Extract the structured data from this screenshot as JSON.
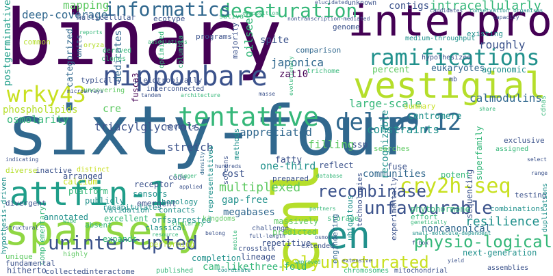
{
  "palette": {
    "dark_purple": "#440154",
    "indigo": "#3b528b",
    "steel_blue": "#31688e",
    "teal": "#21918c",
    "sea_green": "#35b779",
    "lime": "#90d743",
    "yellow_green": "#c8e020",
    "light_green": "#5ec962"
  },
  "words": [
    {
      "text": "binary",
      "color": "#440154"
    },
    {
      "text": "sixty-four",
      "color": "#31688e"
    },
    {
      "text": "cml",
      "color": "#b5de2b"
    },
    {
      "text": "sparsely",
      "color": "#90d743"
    },
    {
      "text": "interpro",
      "color": "#440154"
    },
    {
      "text": "vestigial",
      "color": "#b5de2b"
    },
    {
      "text": "nipponbare",
      "color": "#3b528b"
    },
    {
      "text": "tentative",
      "color": "#35b779"
    },
    {
      "text": "attfin-1",
      "color": "#1f9e89"
    },
    {
      "text": "delta9,12",
      "color": "#31688e"
    },
    {
      "text": "ramifications",
      "color": "#21918c"
    },
    {
      "text": "wrky43",
      "color": "#c8e020"
    },
    {
      "text": "desaturation",
      "color": "#35b779"
    },
    {
      "text": "informatics",
      "color": "#31688e"
    },
    {
      "text": "en",
      "color": "#21918c"
    },
    {
      "text": "cry2h-seq",
      "color": "#c8e020"
    },
    {
      "text": "recombinase",
      "color": "#3b528b"
    },
    {
      "text": "unfavourable",
      "color": "#3b528b"
    },
    {
      "text": "uninterrupted",
      "color": "#3b528b"
    },
    {
      "text": "polyunsaturated",
      "color": "#c8e020"
    },
    {
      "text": "physio-logical",
      "color": "#35b779"
    },
    {
      "text": "intracellularly",
      "color": "#35b779"
    },
    {
      "text": "resilience",
      "color": "#21918c"
    },
    {
      "text": "deep-coverage",
      "color": "#31688e"
    },
    {
      "text": "large-scale",
      "color": "#35b779"
    },
    {
      "text": "calmodulins",
      "color": "#31688e"
    },
    {
      "text": "mapping",
      "color": "#5ec962"
    },
    {
      "text": "contigs",
      "color": "#3b528b"
    },
    {
      "text": "roughly",
      "color": "#3b528b"
    },
    {
      "text": "japonica",
      "color": "#31688e"
    },
    {
      "text": "triacylglycerols",
      "color": "#3b528b"
    },
    {
      "text": "appreciated",
      "color": "#31688e"
    },
    {
      "text": "multiplexed",
      "color": "#5ec962"
    },
    {
      "text": "filling",
      "color": "#5ec962"
    },
    {
      "text": "constraints",
      "color": "#21918c"
    },
    {
      "text": "stretch",
      "color": "#3b528b"
    },
    {
      "text": "osmolarity",
      "color": "#35b779"
    },
    {
      "text": "phospholipids",
      "color": "#b5de2b"
    },
    {
      "text": "communities",
      "color": "#31688e"
    },
    {
      "text": "oilseed",
      "color": "#35b779"
    },
    {
      "text": "dedicates",
      "color": "#31688e"
    },
    {
      "text": "categorized",
      "color": "#31688e"
    },
    {
      "text": "megabases",
      "color": "#31688e"
    },
    {
      "text": "one-third",
      "color": "#21918c"
    },
    {
      "text": "three-fold",
      "color": "#35b779"
    },
    {
      "text": "cam-like",
      "color": "#35b779"
    },
    {
      "text": "zat10",
      "color": "#440154"
    },
    {
      "text": "spite",
      "color": "#3b528b"
    },
    {
      "text": "cost",
      "color": "#3b528b"
    },
    {
      "text": "cre",
      "color": "#5ec962"
    },
    {
      "text": "gap-free",
      "color": "#21918c"
    },
    {
      "text": "fatty",
      "color": "#3b528b"
    },
    {
      "text": "eukaryotes",
      "color": "#31688e"
    },
    {
      "text": "noncanonical",
      "color": "#31688e"
    },
    {
      "text": "postgerminative",
      "color": "#1f9e89"
    },
    {
      "text": "multicellular",
      "color": "#3b528b"
    },
    {
      "text": "ecotype",
      "color": "#3b528b"
    },
    {
      "text": "programs",
      "color": "#3b528b"
    },
    {
      "text": "comparison",
      "color": "#31688e"
    },
    {
      "text": "percent",
      "color": "#5ec962"
    },
    {
      "text": "centromere",
      "color": "#21918c"
    },
    {
      "text": "summary",
      "color": "#c8e020"
    },
    {
      "text": "recognizable",
      "color": "#21918c"
    },
    {
      "text": "sequencing",
      "color": "#3b528b"
    },
    {
      "text": "superfamily",
      "color": "#35b779"
    },
    {
      "text": "potent",
      "color": "#35b779"
    },
    {
      "text": "ssp",
      "color": "#3b528b"
    },
    {
      "text": "calcium",
      "color": "#c8e020"
    },
    {
      "text": "platform",
      "color": "#35b779"
    },
    {
      "text": "receptor",
      "color": "#3b528b"
    },
    {
      "text": "arranged",
      "color": "#3b528b"
    },
    {
      "text": "publicly",
      "color": "#21918c"
    },
    {
      "text": "sensors",
      "color": "#21918c"
    },
    {
      "text": "emergent",
      "color": "#3b528b"
    },
    {
      "text": "annotated",
      "color": "#21918c"
    },
    {
      "text": "excellent",
      "color": "#35b779"
    },
    {
      "text": "orfsarrested",
      "color": "#21918c"
    },
    {
      "text": "expands",
      "color": "#35b779"
    },
    {
      "text": "performing",
      "color": "#b5de2b"
    },
    {
      "text": "completion",
      "color": "#21918c"
    },
    {
      "text": "lineage",
      "color": "#3b528b"
    },
    {
      "text": "repetitive",
      "color": "#3b528b"
    },
    {
      "text": "massively",
      "color": "#5ec962"
    },
    {
      "text": "predicted",
      "color": "#5ec962"
    },
    {
      "text": "hitherto",
      "color": "#3b528b"
    },
    {
      "text": "collected",
      "color": "#3b528b"
    },
    {
      "text": "interactome",
      "color": "#3b528b"
    },
    {
      "text": "next-generation",
      "color": "#21918c"
    },
    {
      "text": "phytohormone",
      "color": "#35b779"
    },
    {
      "text": "combinations",
      "color": "#21918c"
    },
    {
      "text": "testing",
      "color": "#3b528b"
    },
    {
      "text": "agronomic",
      "color": "#21918c"
    },
    {
      "text": "exclusive",
      "color": "#3b528b"
    },
    {
      "text": "fuse",
      "color": "#3b528b"
    },
    {
      "text": "searches",
      "color": "#5ec962"
    },
    {
      "text": "reflect",
      "color": "#3b528b"
    },
    {
      "text": "prepared",
      "color": "#3b528b"
    },
    {
      "text": "methods",
      "color": "#21918c"
    },
    {
      "text": "reveals",
      "color": "#3b528b"
    },
    {
      "text": "code",
      "color": "#3b528b"
    },
    {
      "text": "validation",
      "color": "#21918c"
    },
    {
      "text": "contacts",
      "color": "#21918c"
    },
    {
      "text": "homology",
      "color": "#21918c"
    },
    {
      "text": "classical",
      "color": "#21918c"
    },
    {
      "text": "recapitulates",
      "color": "#21918c"
    },
    {
      "text": "representatives",
      "color": "#21918c"
    },
    {
      "text": "kingdoms",
      "color": "#5ec962"
    },
    {
      "text": "screens",
      "color": "#3b528b"
    },
    {
      "text": "challenge",
      "color": "#3b528b"
    },
    {
      "text": "extended",
      "color": "#3b528b"
    },
    {
      "text": "effort",
      "color": "#35b779"
    },
    {
      "text": "storage",
      "color": "#35b779"
    },
    {
      "text": "technologies",
      "color": "#3b528b"
    },
    {
      "text": "experimentally",
      "color": "#3b528b"
    },
    {
      "text": "ubiquitous",
      "color": "#21918c"
    },
    {
      "text": "engineering",
      "color": "#31688e"
    },
    {
      "text": "hypothesis-driven",
      "color": "#21918c"
    },
    {
      "text": "complementary",
      "color": "#35b779"
    },
    {
      "text": "divergent",
      "color": "#3b528b"
    },
    {
      "text": "absent",
      "color": "#35b779"
    },
    {
      "text": "unique",
      "color": "#5ec962"
    },
    {
      "text": "fundamental",
      "color": "#3b528b"
    },
    {
      "text": "diverse",
      "color": "#b5de2b"
    },
    {
      "text": "inactive",
      "color": "#3b528b"
    },
    {
      "text": "distinct",
      "color": "#c8e020"
    },
    {
      "text": "typically",
      "color": "#3b528b"
    },
    {
      "text": "pleiotropically",
      "color": "#3b528b"
    },
    {
      "text": "interconnected",
      "color": "#3b528b"
    },
    {
      "text": "uncovering",
      "color": "#5ec962"
    },
    {
      "text": "fusca3",
      "color": "#440154"
    },
    {
      "text": "columbia",
      "color": "#35b779"
    },
    {
      "text": "optimized",
      "color": "#35b779"
    },
    {
      "text": "majority",
      "color": "#3b528b"
    },
    {
      "text": "genome",
      "color": "#3b528b"
    },
    {
      "text": "medium-throughput",
      "color": "#21918c"
    },
    {
      "text": "existing",
      "color": "#21918c"
    },
    {
      "text": "hypothesized",
      "color": "#3b528b"
    },
    {
      "text": "mb",
      "color": "#3b528b"
    },
    {
      "text": "units",
      "color": "#31688e"
    },
    {
      "text": "common",
      "color": "#b5de2b"
    },
    {
      "text": "oryza",
      "color": "#b5de2b"
    },
    {
      "text": "derived",
      "color": "#35b779"
    },
    {
      "text": "clones",
      "color": "#35b779"
    },
    {
      "text": "sativa",
      "color": "#35b779"
    },
    {
      "text": "trichome",
      "color": "#35b779"
    },
    {
      "text": "nontranscription-mediated",
      "color": "#3b528b"
    },
    {
      "text": "elucidated",
      "color": "#3b528b"
    },
    {
      "text": "unknown",
      "color": "#3b528b"
    },
    {
      "text": "candidates",
      "color": "#3b528b"
    },
    {
      "text": "conservation",
      "color": "#21918c"
    },
    {
      "text": "organisms",
      "color": "#21918c"
    },
    {
      "text": "capacity",
      "color": "#3b528b"
    },
    {
      "text": "assigned",
      "color": "#35b779"
    },
    {
      "text": "small-molecule-dependent",
      "color": "#21918c"
    },
    {
      "text": "f-box",
      "color": "#3b528b"
    },
    {
      "text": "yield",
      "color": "#3b528b"
    },
    {
      "text": "assemblies",
      "color": "#3b528b"
    },
    {
      "text": "mitochondrial",
      "color": "#3b528b"
    },
    {
      "text": "chromosomes",
      "color": "#35b779"
    },
    {
      "text": "improved",
      "color": "#35b779"
    },
    {
      "text": "crosstalk",
      "color": "#3b528b"
    },
    {
      "text": "full-length",
      "color": "#3b528b"
    },
    {
      "text": "osmotic",
      "color": "#3b528b"
    },
    {
      "text": "density",
      "color": "#31688e"
    },
    {
      "text": "similarity",
      "color": "#35b779"
    },
    {
      "text": "resource",
      "color": "#35b779"
    },
    {
      "text": "published",
      "color": "#35b779"
    },
    {
      "text": "coordinate",
      "color": "#21918c"
    },
    {
      "text": "mobile",
      "color": "#35b779"
    },
    {
      "text": "highly",
      "color": "#5ec962"
    },
    {
      "text": "structural",
      "color": "#3b528b"
    },
    {
      "text": "wide",
      "color": "#35b779"
    },
    {
      "text": "select",
      "color": "#3b528b"
    },
    {
      "text": "range",
      "color": "#3b528b"
    },
    {
      "text": "duplications",
      "color": "#21918c"
    },
    {
      "text": "cdnas",
      "color": "#35b779"
    },
    {
      "text": "share",
      "color": "#35b779"
    },
    {
      "text": "tandem",
      "color": "#3b528b"
    },
    {
      "text": "architecture",
      "color": "#35b779"
    },
    {
      "text": "masse",
      "color": "#3b528b"
    },
    {
      "text": "evolutionary",
      "color": "#35b779"
    },
    {
      "text": "reports",
      "color": "#35b779"
    },
    {
      "text": "associations",
      "color": "#35b779"
    },
    {
      "text": "composition",
      "color": "#35b779"
    },
    {
      "text": "microarrays",
      "color": "#3b528b"
    },
    {
      "text": "hundreds",
      "color": "#3b528b"
    },
    {
      "text": "partners",
      "color": "#35b779"
    },
    {
      "text": "trigger",
      "color": "#35b779"
    },
    {
      "text": "belong",
      "color": "#3b528b"
    },
    {
      "text": "applied",
      "color": "#3b528b"
    },
    {
      "text": "genetically",
      "color": "#35b779"
    },
    {
      "text": "database",
      "color": "#35b779"
    },
    {
      "text": "extensive",
      "color": "#3b528b"
    },
    {
      "text": "indicating",
      "color": "#3b528b"
    },
    {
      "text": "doubtless",
      "color": "#35b779"
    }
  ]
}
